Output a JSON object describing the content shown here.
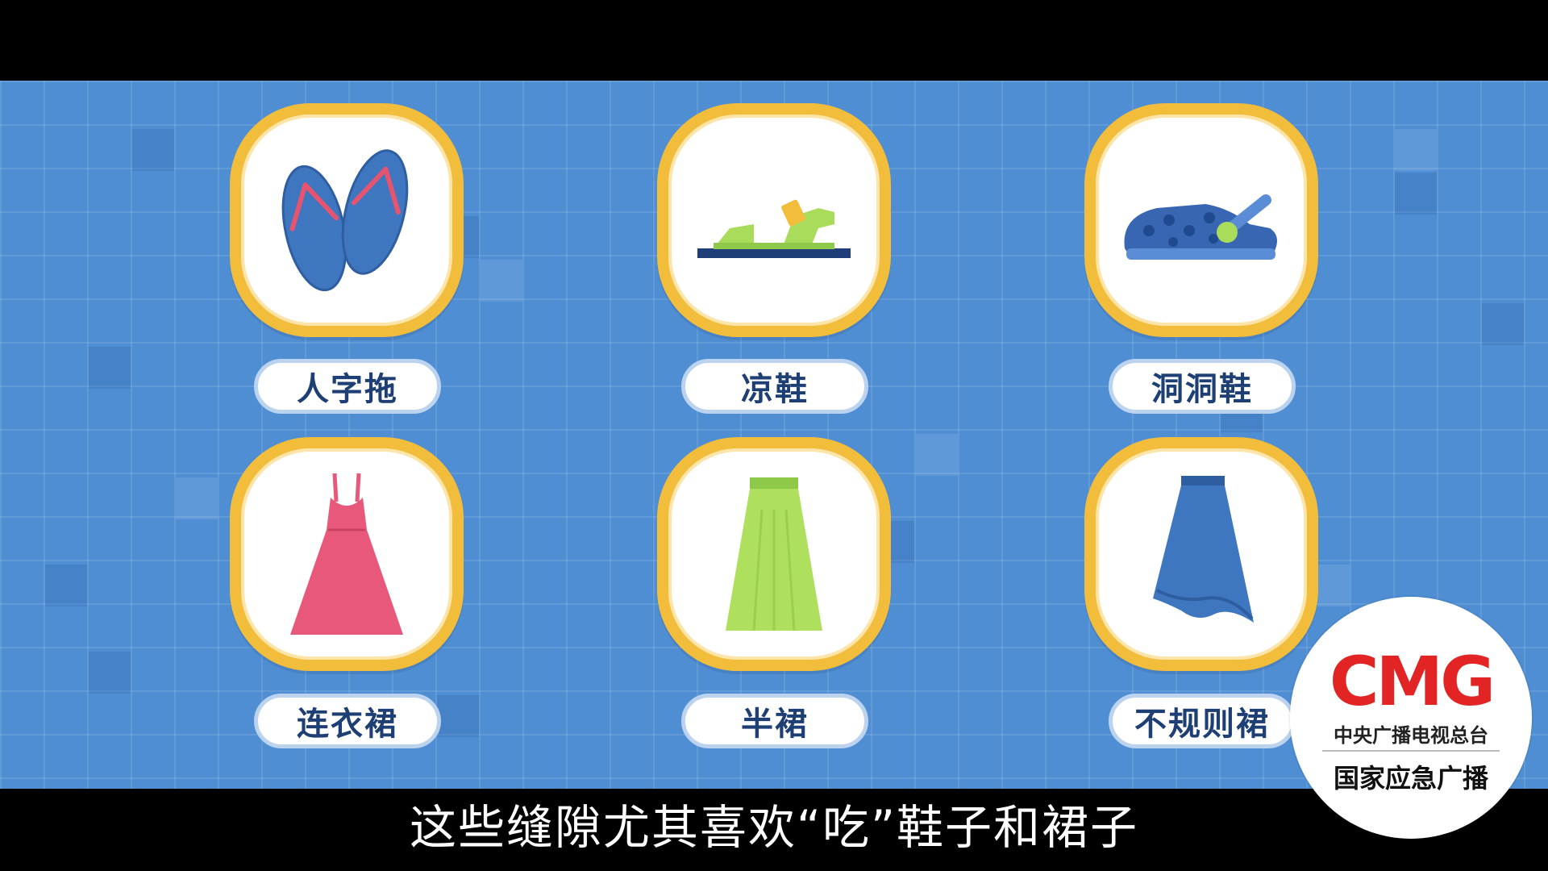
{
  "items": [
    {
      "label": "人字拖",
      "icon": "flip-flops-icon"
    },
    {
      "label": "凉鞋",
      "icon": "sandal-icon"
    },
    {
      "label": "洞洞鞋",
      "icon": "clog-icon"
    },
    {
      "label": "连衣裙",
      "icon": "dress-icon"
    },
    {
      "label": "半裙",
      "icon": "skirt-icon"
    },
    {
      "label": "不规则裙",
      "icon": "irregular-skirt-icon"
    }
  ],
  "subtitle": "这些缝隙尤其喜欢“吃”鞋子和裙子",
  "logo": {
    "brand": "CMG",
    "line1": "中央广播电视总台",
    "line2": "国家应急广播"
  },
  "colors": {
    "background": "#4f8ed3",
    "card_border": "#f3bd3c",
    "label_text": "#1e3f73",
    "logo_red": "#e32424"
  }
}
